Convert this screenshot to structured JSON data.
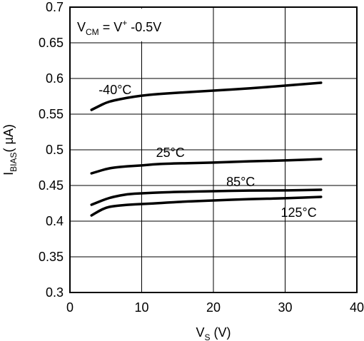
{
  "chart_data": {
    "type": "line",
    "xlabel": {
      "main": "V",
      "sub": "S",
      "rest": " (V)"
    },
    "ylabel": {
      "main": "I",
      "sub": "BIAS",
      "rest": "( µA)"
    },
    "xlim": [
      0,
      40
    ],
    "ylim": [
      0.3,
      0.7
    ],
    "grid": true,
    "xticks": [
      0,
      10,
      20,
      30,
      40
    ],
    "yticks": [
      0.3,
      0.35,
      0.4,
      0.45,
      0.5,
      0.55,
      0.6,
      0.65,
      0.7
    ],
    "xtick_labels": [
      "0",
      "10",
      "20",
      "30",
      "40"
    ],
    "ytick_labels": [
      "0.3",
      "0.35",
      "0.4",
      "0.45",
      "0.5",
      "0.55",
      "0.6",
      "0.65",
      "0.7"
    ],
    "annotation": {
      "v": "V",
      "cm": "CM",
      "eq": " = V",
      "plus": "+",
      "rest": " -0.5V"
    },
    "series": [
      {
        "name": "-40°C",
        "x": [
          3,
          4,
          5,
          6,
          8,
          10,
          12,
          15,
          20,
          25,
          30,
          35
        ],
        "y": [
          0.556,
          0.561,
          0.566,
          0.569,
          0.573,
          0.576,
          0.578,
          0.58,
          0.583,
          0.586,
          0.59,
          0.594
        ]
      },
      {
        "name": "25°C",
        "x": [
          3,
          4,
          5,
          6,
          8,
          10,
          12,
          15,
          20,
          25,
          30,
          35
        ],
        "y": [
          0.467,
          0.47,
          0.473,
          0.475,
          0.477,
          0.478,
          0.48,
          0.481,
          0.482,
          0.484,
          0.485,
          0.487
        ]
      },
      {
        "name": "85°C",
        "x": [
          3,
          4,
          5,
          6,
          8,
          10,
          12,
          15,
          20,
          25,
          30,
          35
        ],
        "y": [
          0.423,
          0.427,
          0.431,
          0.434,
          0.438,
          0.439,
          0.44,
          0.441,
          0.442,
          0.443,
          0.443,
          0.444
        ]
      },
      {
        "name": "125°C",
        "x": [
          3,
          4,
          5,
          6,
          8,
          10,
          12,
          15,
          20,
          25,
          30,
          35
        ],
        "y": [
          0.408,
          0.414,
          0.419,
          0.421,
          0.423,
          0.424,
          0.425,
          0.427,
          0.429,
          0.431,
          0.432,
          0.434
        ]
      }
    ]
  }
}
